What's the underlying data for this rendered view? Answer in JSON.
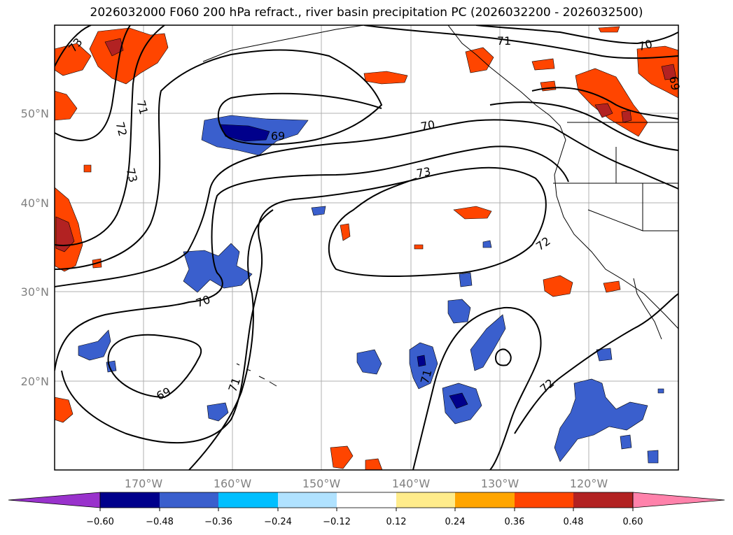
{
  "title": "2026032000 F060 200 hPa refract., river basin precipitation PC (2026032200 - 2026032500)",
  "map": {
    "lat_labels": [
      "50°N",
      "40°N",
      "30°N",
      "20°N"
    ],
    "lon_labels": [
      "170°W",
      "160°W",
      "150°W",
      "140°W",
      "130°W",
      "120°W"
    ]
  },
  "contour_labels": [
    "73",
    "71",
    "72",
    "73",
    "69",
    "70",
    "71",
    "70",
    "69",
    "73",
    "72",
    "70",
    "69",
    "71",
    "71",
    "72"
  ],
  "colorbar": {
    "colors": [
      "#9932cc",
      "#00008b",
      "#3a5fcd",
      "#00bfff",
      "#b0e2ff",
      "#ffffff",
      "#ffec8b",
      "#ffa500",
      "#ff4500",
      "#b22222",
      "#ff82ab"
    ],
    "ticks": [
      "−0.60",
      "−0.48",
      "−0.36",
      "−0.24",
      "−0.12",
      "0.12",
      "0.24",
      "0.36",
      "0.48",
      "0.60"
    ]
  }
}
